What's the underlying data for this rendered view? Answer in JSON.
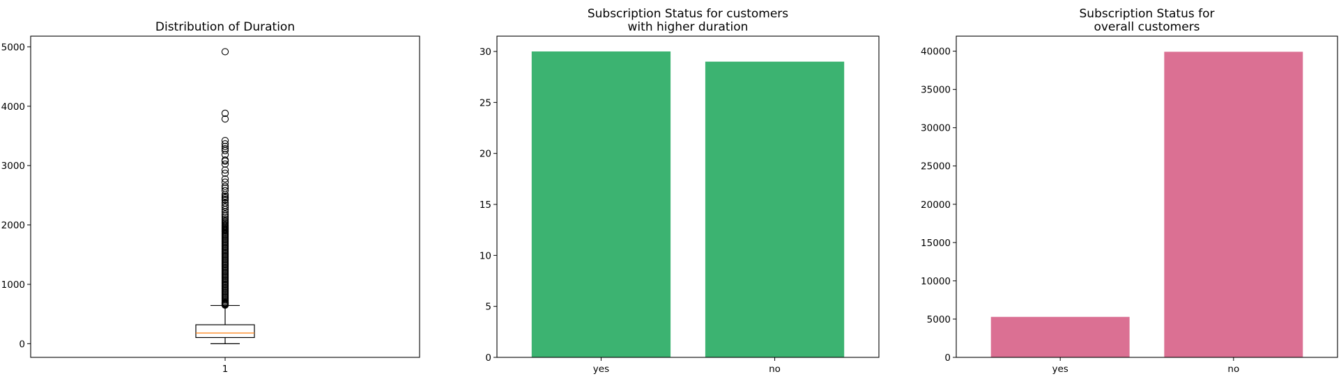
{
  "chart_data": [
    {
      "type": "box",
      "title": "Distribution of Duration",
      "xticklabels": [
        "1"
      ],
      "yticks": [
        "0",
        "1000",
        "2000",
        "3000",
        "4000",
        "5000"
      ],
      "ylim": [
        -230,
        5180
      ],
      "stats": {
        "whisker_low": 0,
        "q1": 104,
        "median": 180,
        "q3": 319,
        "whisker_high": 643
      },
      "outliers": [
        4918,
        3881,
        3785,
        3422,
        3366,
        3322,
        3284,
        3253,
        3183,
        3094,
        3076,
        3025,
        2926,
        2870,
        2775,
        2720,
        2653,
        2621,
        2580,
        2516,
        2487,
        2462,
        2456,
        2429,
        2420,
        2372,
        2330,
        2300,
        2260,
        2219,
        2180,
        2150,
        2121,
        2092,
        2065,
        2045,
        2025,
        2005,
        1990,
        1975,
        1960,
        1945,
        1930,
        1915,
        1900,
        1880,
        1860,
        1840,
        1820,
        1800,
        1780,
        1760,
        1740,
        1720,
        1700,
        1680,
        1660,
        1640,
        1620,
        1600,
        1580,
        1560,
        1540,
        1520,
        1500,
        1480,
        1460,
        1440,
        1420,
        1400,
        1380,
        1360,
        1340,
        1320,
        1300,
        1280,
        1260,
        1240,
        1220,
        1200,
        1180,
        1160,
        1140,
        1120,
        1100,
        1080,
        1060,
        1040,
        1020,
        1000,
        980,
        960,
        940,
        920,
        900,
        880,
        860,
        840,
        820,
        800,
        780,
        760,
        740,
        720,
        700,
        690,
        680,
        670,
        660,
        650
      ],
      "colors": {
        "box": "#000000",
        "median": "#ff7f0e"
      }
    },
    {
      "type": "bar",
      "title": [
        "Subscription Status for customers",
        "with higher duration"
      ],
      "categories": [
        "yes",
        "no"
      ],
      "values": [
        30,
        29
      ],
      "yticks": [
        "0",
        "5",
        "10",
        "15",
        "20",
        "25",
        "30"
      ],
      "ylim": [
        0,
        31.5
      ],
      "color": "#3cb371"
    },
    {
      "type": "bar",
      "title": [
        "Subscription Status for",
        "overall customers"
      ],
      "categories": [
        "yes",
        "no"
      ],
      "values": [
        5289,
        39922
      ],
      "yticks": [
        "0",
        "5000",
        "10000",
        "15000",
        "20000",
        "25000",
        "30000",
        "35000",
        "40000"
      ],
      "ylim": [
        0,
        41960
      ],
      "color": "#db7093"
    }
  ]
}
